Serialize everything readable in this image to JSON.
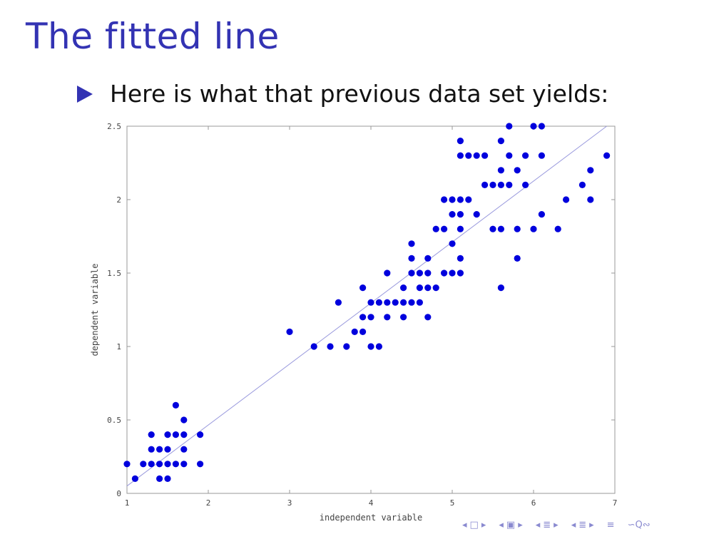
{
  "slide": {
    "title": "The fitted line",
    "bullet": "Here is what that previous data set yields:"
  },
  "colors": {
    "title": "#3333b3",
    "points": "#0000dd",
    "fit_line": "#9999dd"
  },
  "chart_data": {
    "type": "scatter",
    "title": "",
    "xlabel": "independent variable",
    "ylabel": "dependent variable",
    "xlim": [
      1,
      7
    ],
    "ylim": [
      0,
      2.5
    ],
    "xticks": [
      "1",
      "2",
      "3",
      "4",
      "5",
      "6",
      "7"
    ],
    "yticks": [
      "0",
      "0.5",
      "1",
      "1.5",
      "2",
      "2.5"
    ],
    "grid": false,
    "points": [
      [
        1.0,
        0.2
      ],
      [
        1.1,
        0.1
      ],
      [
        1.2,
        0.2
      ],
      [
        1.3,
        0.2
      ],
      [
        1.3,
        0.3
      ],
      [
        1.3,
        0.4
      ],
      [
        1.4,
        0.1
      ],
      [
        1.4,
        0.2
      ],
      [
        1.4,
        0.3
      ],
      [
        1.5,
        0.1
      ],
      [
        1.5,
        0.2
      ],
      [
        1.5,
        0.3
      ],
      [
        1.5,
        0.4
      ],
      [
        1.6,
        0.2
      ],
      [
        1.6,
        0.4
      ],
      [
        1.6,
        0.6
      ],
      [
        1.7,
        0.2
      ],
      [
        1.7,
        0.3
      ],
      [
        1.7,
        0.4
      ],
      [
        1.7,
        0.5
      ],
      [
        1.9,
        0.2
      ],
      [
        1.9,
        0.4
      ],
      [
        3.0,
        1.1
      ],
      [
        3.3,
        1.0
      ],
      [
        3.5,
        1.0
      ],
      [
        3.6,
        1.3
      ],
      [
        3.7,
        1.0
      ],
      [
        3.8,
        1.1
      ],
      [
        3.9,
        1.1
      ],
      [
        3.9,
        1.2
      ],
      [
        3.9,
        1.4
      ],
      [
        4.0,
        1.0
      ],
      [
        4.0,
        1.2
      ],
      [
        4.0,
        1.3
      ],
      [
        4.1,
        1.0
      ],
      [
        4.1,
        1.3
      ],
      [
        4.2,
        1.2
      ],
      [
        4.2,
        1.3
      ],
      [
        4.2,
        1.5
      ],
      [
        4.3,
        1.3
      ],
      [
        4.4,
        1.2
      ],
      [
        4.4,
        1.3
      ],
      [
        4.4,
        1.4
      ],
      [
        4.5,
        1.3
      ],
      [
        4.5,
        1.5
      ],
      [
        4.5,
        1.6
      ],
      [
        4.5,
        1.7
      ],
      [
        4.6,
        1.3
      ],
      [
        4.6,
        1.4
      ],
      [
        4.6,
        1.5
      ],
      [
        4.7,
        1.2
      ],
      [
        4.7,
        1.4
      ],
      [
        4.7,
        1.5
      ],
      [
        4.7,
        1.6
      ],
      [
        4.8,
        1.4
      ],
      [
        4.8,
        1.8
      ],
      [
        4.9,
        1.5
      ],
      [
        4.9,
        1.8
      ],
      [
        4.9,
        2.0
      ],
      [
        5.0,
        1.5
      ],
      [
        5.0,
        1.7
      ],
      [
        5.0,
        1.9
      ],
      [
        5.0,
        2.0
      ],
      [
        5.1,
        1.5
      ],
      [
        5.1,
        1.6
      ],
      [
        5.1,
        1.8
      ],
      [
        5.1,
        1.9
      ],
      [
        5.1,
        2.0
      ],
      [
        5.1,
        2.3
      ],
      [
        5.1,
        2.4
      ],
      [
        5.2,
        2.0
      ],
      [
        5.2,
        2.3
      ],
      [
        5.3,
        1.9
      ],
      [
        5.3,
        2.3
      ],
      [
        5.4,
        2.1
      ],
      [
        5.4,
        2.3
      ],
      [
        5.5,
        1.8
      ],
      [
        5.5,
        2.1
      ],
      [
        5.6,
        1.4
      ],
      [
        5.6,
        1.8
      ],
      [
        5.6,
        2.1
      ],
      [
        5.6,
        2.2
      ],
      [
        5.6,
        2.4
      ],
      [
        5.7,
        2.1
      ],
      [
        5.7,
        2.3
      ],
      [
        5.7,
        2.5
      ],
      [
        5.8,
        1.6
      ],
      [
        5.8,
        1.8
      ],
      [
        5.8,
        2.2
      ],
      [
        5.9,
        2.1
      ],
      [
        5.9,
        2.3
      ],
      [
        6.0,
        1.8
      ],
      [
        6.0,
        2.5
      ],
      [
        6.1,
        1.9
      ],
      [
        6.1,
        2.3
      ],
      [
        6.1,
        2.5
      ],
      [
        6.3,
        1.8
      ],
      [
        6.4,
        2.0
      ],
      [
        6.6,
        2.1
      ],
      [
        6.7,
        2.0
      ],
      [
        6.7,
        2.2
      ],
      [
        6.9,
        2.3
      ]
    ],
    "fit_line": {
      "x": [
        1.0,
        6.9
      ],
      "y": [
        0.05,
        2.5
      ]
    }
  },
  "nav": {
    "frame_left": "◂",
    "frame_icon": "□",
    "frame_right": "▸",
    "sub_left": "◂",
    "sub_icon": "▣",
    "sub_right": "▸",
    "sec_left": "◂",
    "sec_icon": "≣",
    "sec_right": "▸",
    "subsec_left": "◂",
    "subsec_icon": "≣",
    "subsec_right": "▸",
    "doc_icon": "≡",
    "search_icon": "∽Q∾"
  }
}
